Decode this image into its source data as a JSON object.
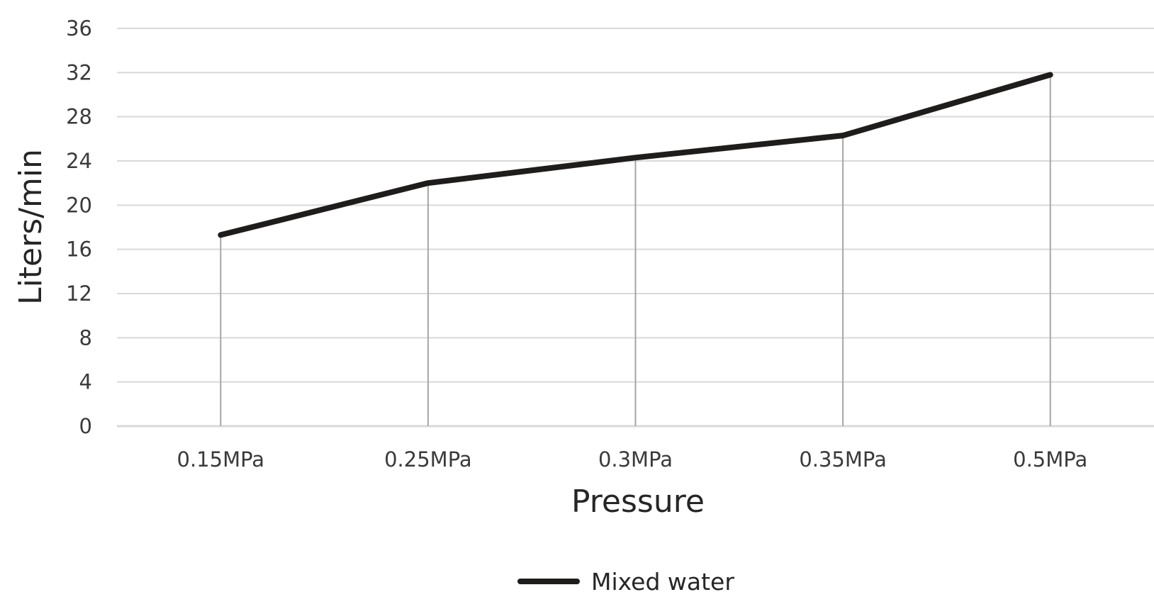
{
  "chart_data": {
    "type": "line",
    "categories": [
      "0.15MPa",
      "0.25MPa",
      "0.3MPa",
      "0.35MPa",
      "0.5MPa"
    ],
    "series": [
      {
        "name": "Mixed water",
        "values": [
          17.3,
          22.0,
          24.3,
          26.3,
          31.8
        ]
      }
    ],
    "xlabel": "Pressure",
    "ylabel": "Liters/min",
    "ylim": [
      0,
      36
    ],
    "yticks": [
      0,
      4,
      8,
      12,
      16,
      20,
      24,
      28,
      32,
      36
    ],
    "grid": "horizontal",
    "drop_lines": true,
    "legend": "bottom-center",
    "colors": {
      "line": "#1f1c1c",
      "grid": "#d9d9d9",
      "drop_line": "#a6a6a6"
    }
  }
}
